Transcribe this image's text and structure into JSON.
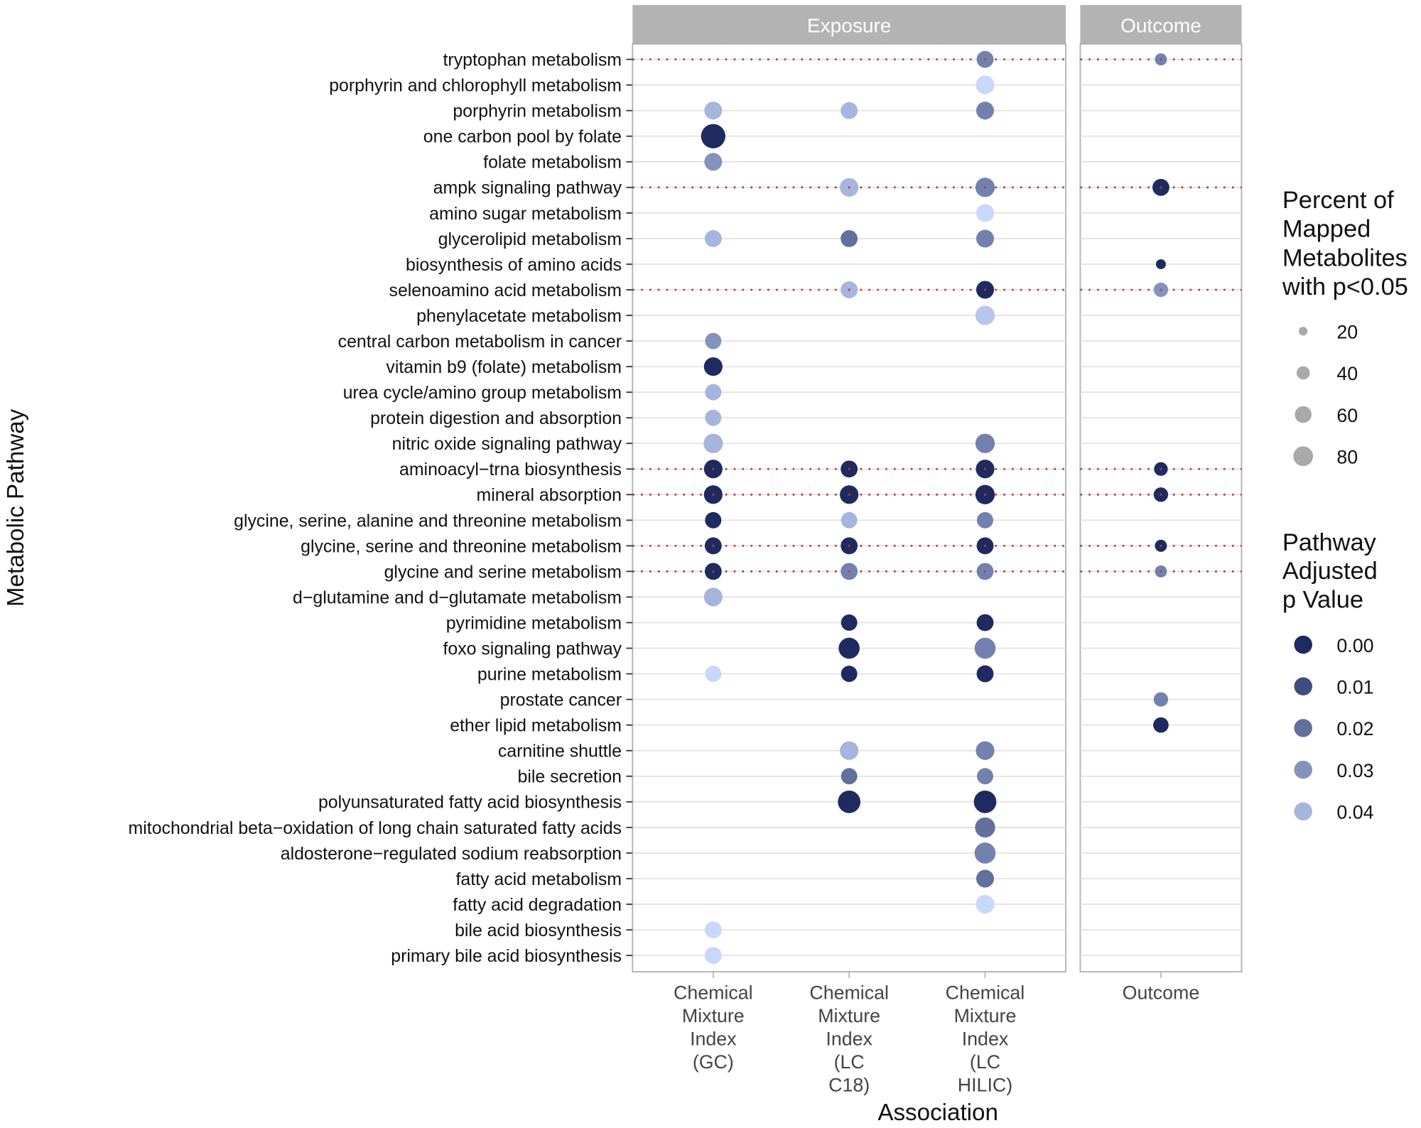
{
  "chart_data": {
    "type": "scatter",
    "subtype": "faceted bubble plot",
    "xlabel": "Association",
    "ylabel": "Metabolic Pathway",
    "panels": [
      {
        "title": "Exposure",
        "columns": [
          "GC",
          "C18",
          "HILIC"
        ]
      },
      {
        "title": "Outcome",
        "columns": [
          "Outcome"
        ]
      }
    ],
    "columns": {
      "GC": [
        "Chemical",
        "Mixture",
        "Index",
        "(GC)"
      ],
      "C18": [
        "Chemical",
        "Mixture",
        "Index",
        "(LC",
        "C18)"
      ],
      "HILIC": [
        "Chemical",
        "Mixture",
        "Index",
        "(LC",
        "HILIC)"
      ],
      "Outcome": [
        "Outcome"
      ]
    },
    "size_legend": {
      "title": [
        "Percent of",
        "Mapped",
        "Metabolites",
        "with p<0.05"
      ],
      "values": [
        20,
        40,
        60,
        80
      ]
    },
    "color_legend": {
      "title": [
        "Pathway",
        "Adjusted",
        "p Value"
      ],
      "values": [
        "0.00",
        "0.01",
        "0.02",
        "0.03",
        "0.04"
      ],
      "low_color": "#1e2a60",
      "high_color": "#c8d8fc",
      "range": [
        0,
        0.05
      ]
    },
    "highlight_color": "#c0392b",
    "pathways": [
      {
        "name": "tryptophan metabolism",
        "highlight": true,
        "values": {
          "HILIC": [
            46,
            0.025
          ],
          "Outcome": [
            26,
            0.025
          ]
        }
      },
      {
        "name": "porphyrin and chlorophyll metabolism",
        "highlight": false,
        "values": {
          "HILIC": [
            54,
            0.05
          ]
        }
      },
      {
        "name": "porphyrin metabolism",
        "highlight": false,
        "values": {
          "GC": [
            50,
            0.04
          ],
          "C18": [
            46,
            0.04
          ],
          "HILIC": [
            50,
            0.025
          ]
        }
      },
      {
        "name": "one carbon pool by folate",
        "highlight": false,
        "values": {
          "GC": [
            87,
            0.0
          ]
        }
      },
      {
        "name": "folate metabolism",
        "highlight": false,
        "values": {
          "GC": [
            50,
            0.03
          ]
        }
      },
      {
        "name": "ampk signaling pathway",
        "highlight": true,
        "values": {
          "C18": [
            54,
            0.04
          ],
          "HILIC": [
            58,
            0.025
          ],
          "Outcome": [
            46,
            0.0
          ]
        }
      },
      {
        "name": "amino sugar metabolism",
        "highlight": false,
        "values": {
          "HILIC": [
            50,
            0.05
          ]
        }
      },
      {
        "name": "glycerolipid metabolism",
        "highlight": false,
        "values": {
          "GC": [
            46,
            0.04
          ],
          "C18": [
            46,
            0.02
          ],
          "HILIC": [
            50,
            0.025
          ]
        }
      },
      {
        "name": "biosynthesis of amino acids",
        "highlight": false,
        "values": {
          "Outcome": [
            19,
            0.0
          ]
        }
      },
      {
        "name": "selenoamino acid metabolism",
        "highlight": true,
        "values": {
          "C18": [
            46,
            0.04
          ],
          "HILIC": [
            50,
            0.0
          ],
          "Outcome": [
            35,
            0.03
          ]
        }
      },
      {
        "name": "phenylacetate metabolism",
        "highlight": false,
        "values": {
          "HILIC": [
            58,
            0.045
          ]
        }
      },
      {
        "name": "central carbon metabolism in cancer",
        "highlight": false,
        "values": {
          "GC": [
            43,
            0.03
          ]
        }
      },
      {
        "name": "vitamin b9 (folate) metabolism",
        "highlight": false,
        "values": {
          "GC": [
            54,
            0.0
          ]
        }
      },
      {
        "name": "urea cycle/amino group metabolism",
        "highlight": false,
        "values": {
          "GC": [
            43,
            0.04
          ]
        }
      },
      {
        "name": "protein digestion and absorption",
        "highlight": false,
        "values": {
          "GC": [
            43,
            0.04
          ]
        }
      },
      {
        "name": "nitric oxide signaling pathway",
        "highlight": false,
        "values": {
          "GC": [
            58,
            0.04
          ],
          "HILIC": [
            58,
            0.025
          ]
        }
      },
      {
        "name": "aminoacyl−trna biosynthesis",
        "highlight": true,
        "values": {
          "GC": [
            54,
            0.0
          ],
          "C18": [
            46,
            0.0
          ],
          "HILIC": [
            54,
            0.0
          ],
          "Outcome": [
            32,
            0.0
          ]
        }
      },
      {
        "name": "mineral absorption",
        "highlight": true,
        "values": {
          "GC": [
            54,
            0.0
          ],
          "C18": [
            54,
            0.0
          ],
          "HILIC": [
            58,
            0.0
          ],
          "Outcome": [
            35,
            0.0
          ]
        }
      },
      {
        "name": "glycine, serine, alanine and threonine metabolism",
        "highlight": false,
        "values": {
          "GC": [
            43,
            0.0
          ],
          "C18": [
            43,
            0.04
          ],
          "HILIC": [
            43,
            0.025
          ]
        }
      },
      {
        "name": "glycine, serine and threonine metabolism",
        "highlight": true,
        "values": {
          "GC": [
            46,
            0.0
          ],
          "C18": [
            46,
            0.0
          ],
          "HILIC": [
            46,
            0.0
          ],
          "Outcome": [
            26,
            0.0
          ]
        }
      },
      {
        "name": "glycine and serine metabolism",
        "highlight": true,
        "values": {
          "GC": [
            46,
            0.0
          ],
          "C18": [
            46,
            0.025
          ],
          "HILIC": [
            46,
            0.025
          ],
          "Outcome": [
            26,
            0.025
          ]
        }
      },
      {
        "name": "d−glutamine and d−glutamate metabolism",
        "highlight": false,
        "values": {
          "GC": [
            54,
            0.04
          ]
        }
      },
      {
        "name": "pyrimidine metabolism",
        "highlight": false,
        "values": {
          "C18": [
            43,
            0.0
          ],
          "HILIC": [
            46,
            0.0
          ]
        }
      },
      {
        "name": "foxo signaling pathway",
        "highlight": false,
        "values": {
          "C18": [
            67,
            0.0
          ],
          "HILIC": [
            67,
            0.025
          ]
        }
      },
      {
        "name": "purine metabolism",
        "highlight": false,
        "values": {
          "GC": [
            43,
            0.05
          ],
          "C18": [
            43,
            0.0
          ],
          "HILIC": [
            46,
            0.0
          ]
        }
      },
      {
        "name": "prostate cancer",
        "highlight": false,
        "values": {
          "Outcome": [
            35,
            0.025
          ]
        }
      },
      {
        "name": "ether lipid metabolism",
        "highlight": false,
        "values": {
          "Outcome": [
            39,
            0.0
          ]
        }
      },
      {
        "name": "carnitine shuttle",
        "highlight": false,
        "values": {
          "C18": [
            54,
            0.04
          ],
          "HILIC": [
            54,
            0.025
          ]
        }
      },
      {
        "name": "bile secretion",
        "highlight": false,
        "values": {
          "C18": [
            43,
            0.02
          ],
          "HILIC": [
            43,
            0.025
          ]
        }
      },
      {
        "name": "polyunsaturated fatty acid biosynthesis",
        "highlight": false,
        "values": {
          "C18": [
            76,
            0.0
          ],
          "HILIC": [
            76,
            0.0
          ]
        }
      },
      {
        "name": "mitochondrial beta−oxidation of long chain saturated fatty acids",
        "highlight": false,
        "values": {
          "HILIC": [
            62,
            0.02
          ]
        }
      },
      {
        "name": "aldosterone−regulated sodium reabsorption",
        "highlight": false,
        "values": {
          "HILIC": [
            67,
            0.025
          ]
        }
      },
      {
        "name": "fatty acid metabolism",
        "highlight": false,
        "values": {
          "HILIC": [
            50,
            0.02
          ]
        }
      },
      {
        "name": "fatty acid degradation",
        "highlight": false,
        "values": {
          "HILIC": [
            54,
            0.05
          ]
        }
      },
      {
        "name": "bile acid biosynthesis",
        "highlight": false,
        "values": {
          "GC": [
            46,
            0.05
          ]
        }
      },
      {
        "name": "primary bile acid biosynthesis",
        "highlight": false,
        "values": {
          "GC": [
            46,
            0.05
          ]
        }
      }
    ]
  }
}
